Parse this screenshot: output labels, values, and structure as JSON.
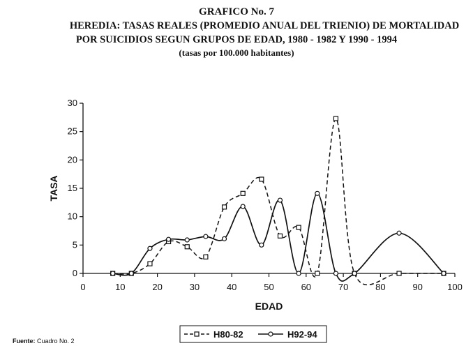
{
  "header": {
    "line1": "GRAFICO No. 7",
    "line2": "HEREDIA: TASAS REALES (PROMEDIO ANUAL DEL TRIENIO) DE MORTALIDAD",
    "line3": "POR SUICIDIOS SEGUN GRUPOS DE EDAD, 1980 - 1982 Y 1990 - 1994",
    "line4": "(tasas por 100.000 habitantes)"
  },
  "source": {
    "label": "Fuente:",
    "text": "Cuadro No. 2"
  },
  "chart_data": {
    "type": "line",
    "title": "GRAFICO No. 7",
    "xlabel": "EDAD",
    "ylabel": "TASA",
    "xlim": [
      0,
      100
    ],
    "ylim": [
      0,
      30
    ],
    "x_ticks": [
      0,
      10,
      20,
      30,
      40,
      50,
      60,
      70,
      80,
      90,
      100
    ],
    "y_ticks": [
      0,
      5,
      10,
      15,
      20,
      25,
      30
    ],
    "y_tick_labels": [
      "0",
      "5",
      "10",
      "15",
      "20",
      "25",
      "30"
    ],
    "grid": false,
    "legend_position": "bottom",
    "series": [
      {
        "name": "H80-82",
        "style": "dashed",
        "marker": "square",
        "color": "#111111",
        "x": [
          8,
          13,
          18,
          23,
          28,
          33,
          38,
          43,
          48,
          53,
          58,
          63,
          68,
          73,
          85,
          97
        ],
        "y": [
          0,
          0,
          1.7,
          5.6,
          4.7,
          2.9,
          11.7,
          14.1,
          16.6,
          6.6,
          8.1,
          0,
          27.3,
          0,
          0,
          0
        ]
      },
      {
        "name": "H92-94",
        "style": "solid",
        "marker": "circle",
        "color": "#111111",
        "x": [
          8,
          13,
          18,
          23,
          28,
          33,
          38,
          43,
          48,
          53,
          58,
          63,
          68,
          73,
          85,
          97
        ],
        "y": [
          0,
          0,
          4.4,
          6.0,
          5.9,
          6.5,
          6.1,
          11.8,
          5.0,
          12.9,
          0,
          14.1,
          0,
          0,
          7.1,
          0
        ]
      }
    ]
  }
}
